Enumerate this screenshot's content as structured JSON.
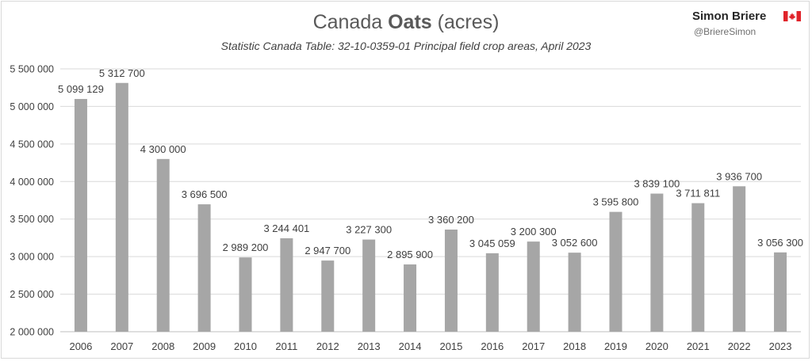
{
  "author": {
    "name": "Simon Briere",
    "handle": "@BriereSimon",
    "flag_icon": "canada-flag-icon"
  },
  "colors": {
    "bar": "#a6a6a6",
    "grid": "#d9d9d9",
    "flag_red": "#e0232a"
  },
  "chart_data": {
    "type": "bar",
    "title_prefix": "Canada ",
    "title_bold": "Oats",
    "title_suffix": " (acres)",
    "subtitle": "Statistic Canada Table: 32-10-0359-01 Principal field crop areas, April 2023",
    "xlabel": "",
    "ylabel": "",
    "ylim": [
      2000000,
      5500000
    ],
    "yticks": [
      2000000,
      2500000,
      3000000,
      3500000,
      4000000,
      4500000,
      5000000,
      5500000
    ],
    "ytick_labels": [
      "2 000 000",
      "2 500 000",
      "3 000 000",
      "3 500 000",
      "4 000 000",
      "4 500 000",
      "5 000 000",
      "5 500 000"
    ],
    "grid": true,
    "legend": "none",
    "categories": [
      "2006",
      "2007",
      "2008",
      "2009",
      "2010",
      "2011",
      "2012",
      "2013",
      "2014",
      "2015",
      "2016",
      "2017",
      "2018",
      "2019",
      "2020",
      "2021",
      "2022",
      "2023"
    ],
    "values": [
      5099129,
      5312700,
      4300000,
      3696500,
      2989200,
      3244401,
      2947700,
      3227300,
      2895900,
      3360200,
      3045059,
      3200300,
      3052600,
      3595800,
      3839100,
      3711811,
      3936700,
      3056300
    ],
    "value_labels": [
      "5 099 129",
      "5 312 700",
      "4 300 000",
      "3 696 500",
      "2 989 200",
      "3 244 401",
      "2 947 700",
      "3 227 300",
      "2 895 900",
      "3 360 200",
      "3 045 059",
      "3 200 300",
      "3 052 600",
      "3 595 800",
      "3 839 100",
      "3 711 811",
      "3 936 700",
      "3 056 300"
    ]
  }
}
